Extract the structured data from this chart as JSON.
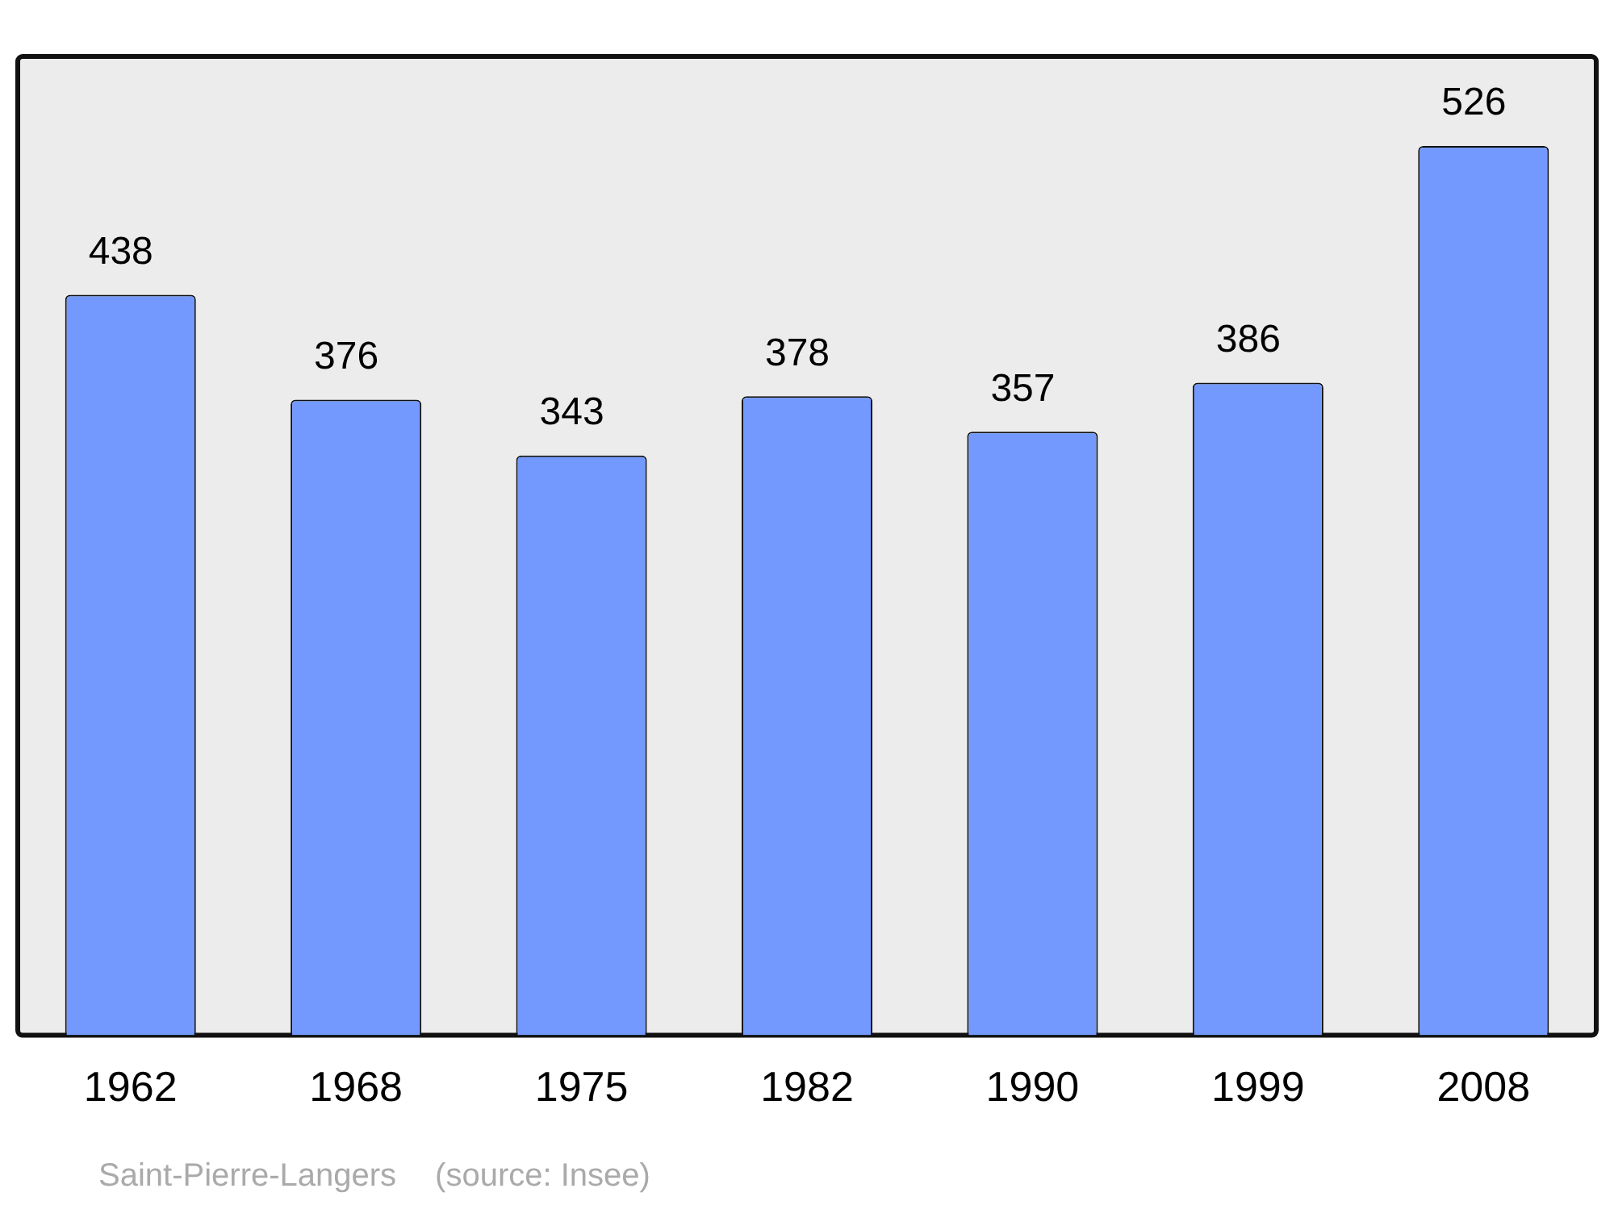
{
  "chart_data": {
    "type": "bar",
    "categories": [
      "1962",
      "1968",
      "1975",
      "1982",
      "1990",
      "1999",
      "2008"
    ],
    "values": [
      438,
      376,
      343,
      378,
      357,
      386,
      526
    ],
    "color": "#7399ff",
    "ylim": [
      0,
      579
    ],
    "data_labels": true,
    "grid": false,
    "legend": false,
    "annotations": [
      "Saint-Pierre-Langers",
      "(source: Insee)"
    ]
  }
}
